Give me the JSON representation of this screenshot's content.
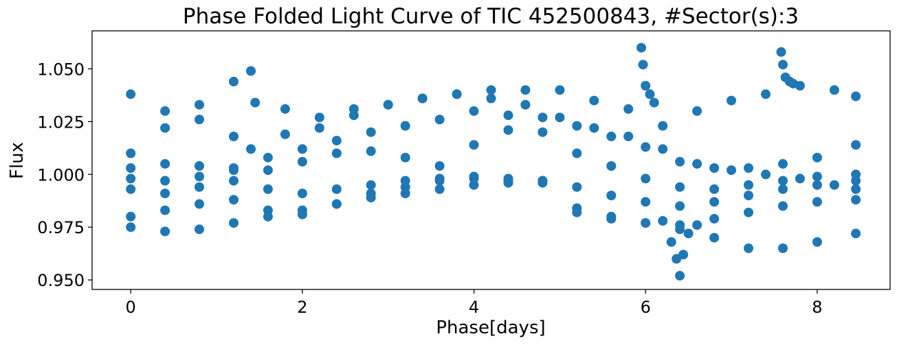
{
  "chart_data": {
    "type": "scatter",
    "title": "Phase Folded Light Curve of TIC 452500843, #Sector(s):3",
    "xlabel": "Phase[days]",
    "ylabel": "Flux",
    "xlim": [
      -0.45,
      8.85
    ],
    "ylim": [
      0.9455,
      1.068
    ],
    "xticks": [
      0,
      2,
      4,
      6,
      8
    ],
    "xtick_labels": [
      "0",
      "2",
      "4",
      "6",
      "8"
    ],
    "yticks": [
      0.95,
      0.975,
      1.0,
      1.025,
      1.05
    ],
    "ytick_labels": [
      "0.950",
      "0.975",
      "1.000",
      "1.025",
      "1.050"
    ],
    "grid": false,
    "marker_color": "#1f77b4",
    "series": [
      {
        "x": [
          0.0,
          0.4,
          0.8,
          1.2,
          1.4,
          1.45,
          1.8,
          2.2,
          2.6,
          3.0,
          3.4,
          3.8,
          4.2,
          4.6,
          5.0,
          5.4,
          5.8,
          6.2,
          6.6,
          7.0,
          7.4,
          7.8,
          8.2,
          8.45
        ],
        "y": [
          1.038,
          1.03,
          1.026,
          1.018,
          1.012,
          1.034,
          1.031,
          1.027,
          1.031,
          1.033,
          1.036,
          1.038,
          1.036,
          1.033,
          1.027,
          1.022,
          1.018,
          1.012,
          1.005,
          1.002,
          1.0,
          0.998,
          0.995,
          0.993
        ]
      },
      {
        "x": [
          0.0,
          0.4,
          0.8,
          1.2,
          1.4,
          1.8,
          2.2,
          2.6,
          3.0,
          3.4,
          3.8,
          4.2,
          4.6,
          5.0,
          5.4,
          5.8,
          6.2,
          6.6,
          7.0,
          7.4,
          7.8,
          8.2,
          8.45
        ],
        "y": [
          1.01,
          1.022,
          1.033,
          1.044,
          1.049,
          1.019,
          1.022,
          1.028,
          1.033,
          1.036,
          1.038,
          1.04,
          1.04,
          1.04,
          1.035,
          1.031,
          1.023,
          1.03,
          1.035,
          1.038,
          1.042,
          1.04,
          1.037
        ]
      },
      {
        "x": [
          0.0,
          0.4,
          0.8,
          1.2,
          1.6,
          2.0,
          2.4,
          2.8,
          3.2,
          3.6,
          4.0,
          4.4,
          4.8,
          5.2,
          5.6,
          6.0,
          6.4,
          6.8,
          7.2,
          7.6,
          8.0,
          8.45
        ],
        "y": [
          1.003,
          1.005,
          1.004,
          1.003,
          1.002,
          1.006,
          1.01,
          1.011,
          1.008,
          1.004,
          1.014,
          1.021,
          1.027,
          1.023,
          1.018,
          1.013,
          1.006,
          1.003,
          1.003,
          1.005,
          1.008,
          1.014
        ]
      },
      {
        "x": [
          0.0,
          0.4,
          0.8,
          1.2,
          1.6,
          2.0,
          2.4,
          2.8,
          3.2,
          3.6,
          4.0,
          4.4,
          4.8,
          5.2,
          5.6,
          6.0,
          6.4,
          6.8,
          7.2,
          7.6,
          8.0,
          8.45
        ],
        "y": [
          0.998,
          0.997,
          0.999,
          1.002,
          1.008,
          1.012,
          1.016,
          1.02,
          1.023,
          1.026,
          1.03,
          1.028,
          1.02,
          1.01,
          1.004,
          0.998,
          0.994,
          0.993,
          0.995,
          0.997,
          0.999,
          1.0
        ]
      },
      {
        "x": [
          0.0,
          0.4,
          0.8,
          1.2,
          1.6,
          2.0,
          2.4,
          2.8,
          3.2,
          3.6,
          4.0,
          4.4,
          4.8,
          5.2,
          5.6,
          6.0,
          6.4,
          6.8,
          7.2,
          7.6,
          8.0,
          8.45
        ],
        "y": [
          0.993,
          0.991,
          0.994,
          0.997,
          0.993,
          0.991,
          0.993,
          0.995,
          0.997,
          0.998,
          0.999,
          0.998,
          0.997,
          0.994,
          0.99,
          0.987,
          0.985,
          0.987,
          0.99,
          0.993,
          0.995,
          0.997
        ]
      },
      {
        "x": [
          0.0,
          0.4,
          0.8,
          1.2,
          1.6,
          2.0,
          2.4,
          2.8,
          3.2,
          3.6,
          4.0,
          4.4,
          4.8,
          5.2,
          5.6,
          6.0,
          6.4,
          6.8,
          7.2,
          7.6,
          8.0,
          8.45
        ],
        "y": [
          0.98,
          0.983,
          0.986,
          0.988,
          0.983,
          0.981,
          0.986,
          0.991,
          0.994,
          0.997,
          0.998,
          0.997,
          0.996,
          0.984,
          0.98,
          0.977,
          0.974,
          0.979,
          0.982,
          0.985,
          0.987,
          0.988
        ]
      },
      {
        "x": [
          0.0,
          0.4,
          0.8,
          1.2,
          1.6,
          2.0,
          2.4,
          2.8,
          3.2,
          3.6,
          4.0,
          4.4,
          4.8,
          5.2,
          5.6,
          6.0,
          6.4,
          6.8,
          7.2,
          7.6,
          8.0,
          8.45
        ],
        "y": [
          0.975,
          0.973,
          0.974,
          0.977,
          0.98,
          0.983,
          0.986,
          0.989,
          0.991,
          0.993,
          0.995,
          0.996,
          0.997,
          0.982,
          0.979,
          0.977,
          0.976,
          0.97,
          0.965,
          0.965,
          0.968,
          0.972
        ]
      },
      {
        "x": [
          6.2,
          6.3,
          6.36,
          6.4,
          6.44,
          6.5,
          6.6
        ],
        "y": [
          0.978,
          0.968,
          0.96,
          0.952,
          0.962,
          0.972,
          0.976
        ]
      },
      {
        "x": [
          5.95,
          5.97,
          6.0,
          6.05,
          6.1
        ],
        "y": [
          1.06,
          1.052,
          1.042,
          1.038,
          1.034
        ]
      },
      {
        "x": [
          7.58,
          7.6,
          7.63,
          7.68,
          7.72
        ],
        "y": [
          1.058,
          1.052,
          1.046,
          1.044,
          1.043
        ]
      }
    ]
  }
}
